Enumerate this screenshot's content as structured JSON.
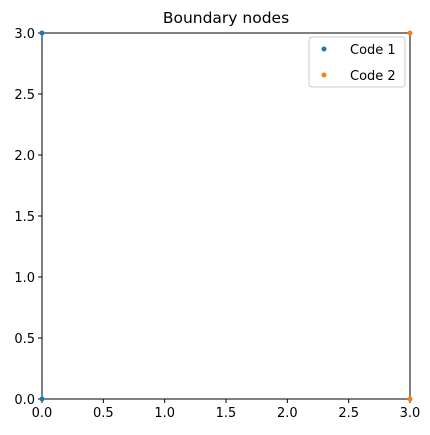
{
  "chart_data": {
    "type": "scatter",
    "title": "Boundary nodes",
    "xlabel": "",
    "ylabel": "",
    "xlim": [
      0,
      3
    ],
    "ylim": [
      0,
      3
    ],
    "xticks": [
      "0.0",
      "0.5",
      "1.0",
      "1.5",
      "2.0",
      "2.5",
      "3.0"
    ],
    "yticks": [
      "0.0",
      "0.5",
      "1.0",
      "1.5",
      "2.0",
      "2.5",
      "3.0"
    ],
    "grid": false,
    "legend_position": "top-right",
    "series": [
      {
        "name": "Code 1",
        "color": "#1f77b4",
        "x": [
          0,
          0
        ],
        "y": [
          0,
          3
        ]
      },
      {
        "name": "Code 2",
        "color": "#ff7f0e",
        "x": [
          3,
          3
        ],
        "y": [
          0,
          3
        ]
      }
    ]
  }
}
